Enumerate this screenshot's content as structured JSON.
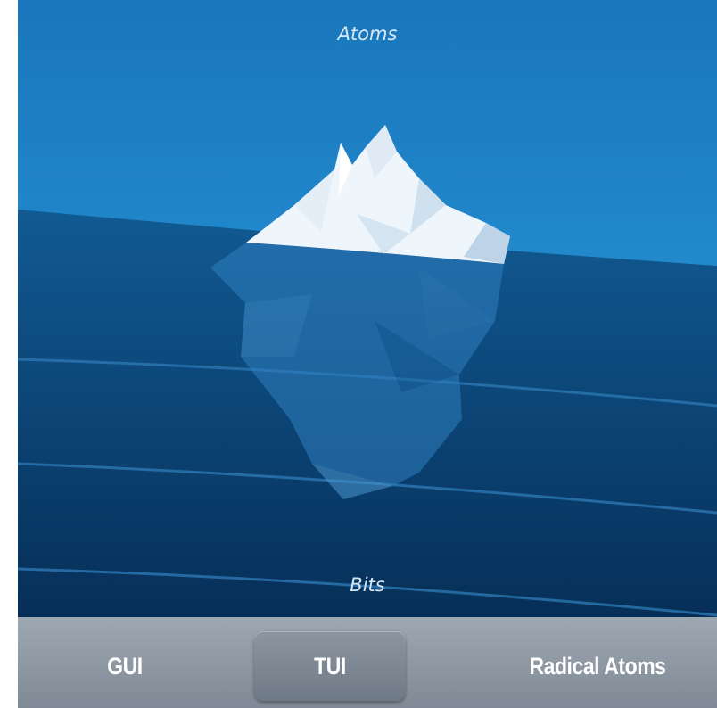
{
  "scene": {
    "top_label": "Atoms",
    "bottom_label": "Bits"
  },
  "tabs": [
    {
      "label": "GUI"
    },
    {
      "label": "TUI",
      "selected": true
    },
    {
      "label": "Radical Atoms"
    }
  ]
}
